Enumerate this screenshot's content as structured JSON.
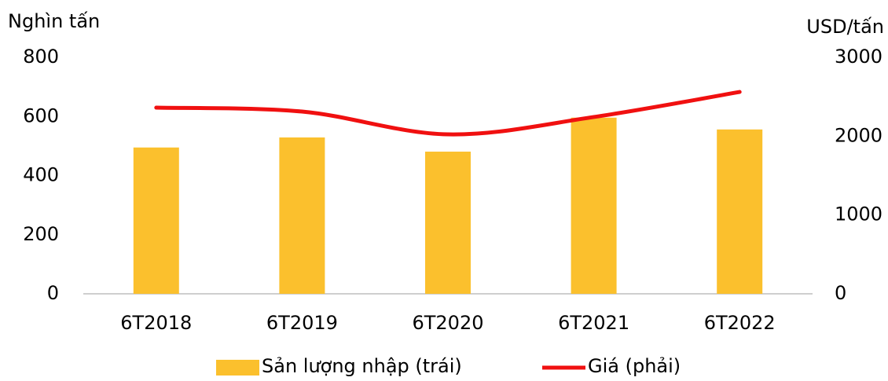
{
  "chart_data": {
    "type": "bar-line",
    "y_label": "Nghìn tấn",
    "y2_label": "USD/tấn",
    "categories": [
      "6T2018",
      "6T2019",
      "6T2020",
      "6T2021",
      "6T2022"
    ],
    "series": [
      {
        "name": "Sản lượng nhập (trái)",
        "type": "bar",
        "color": "#fbc02d",
        "values": [
          495,
          529,
          481,
          596,
          556
        ]
      },
      {
        "name": "Giá (phải)",
        "type": "line",
        "axis": "y2",
        "color": "#f01010",
        "values": [
          2362,
          2312,
          2023,
          2243,
          2561
        ]
      }
    ],
    "ylim": [
      0,
      800
    ],
    "yticks": [
      0,
      200,
      400,
      600,
      800
    ],
    "y2lim": [
      0,
      3000
    ],
    "y2ticks": [
      0,
      1000,
      2000,
      3000
    ],
    "legend": "bottom"
  }
}
